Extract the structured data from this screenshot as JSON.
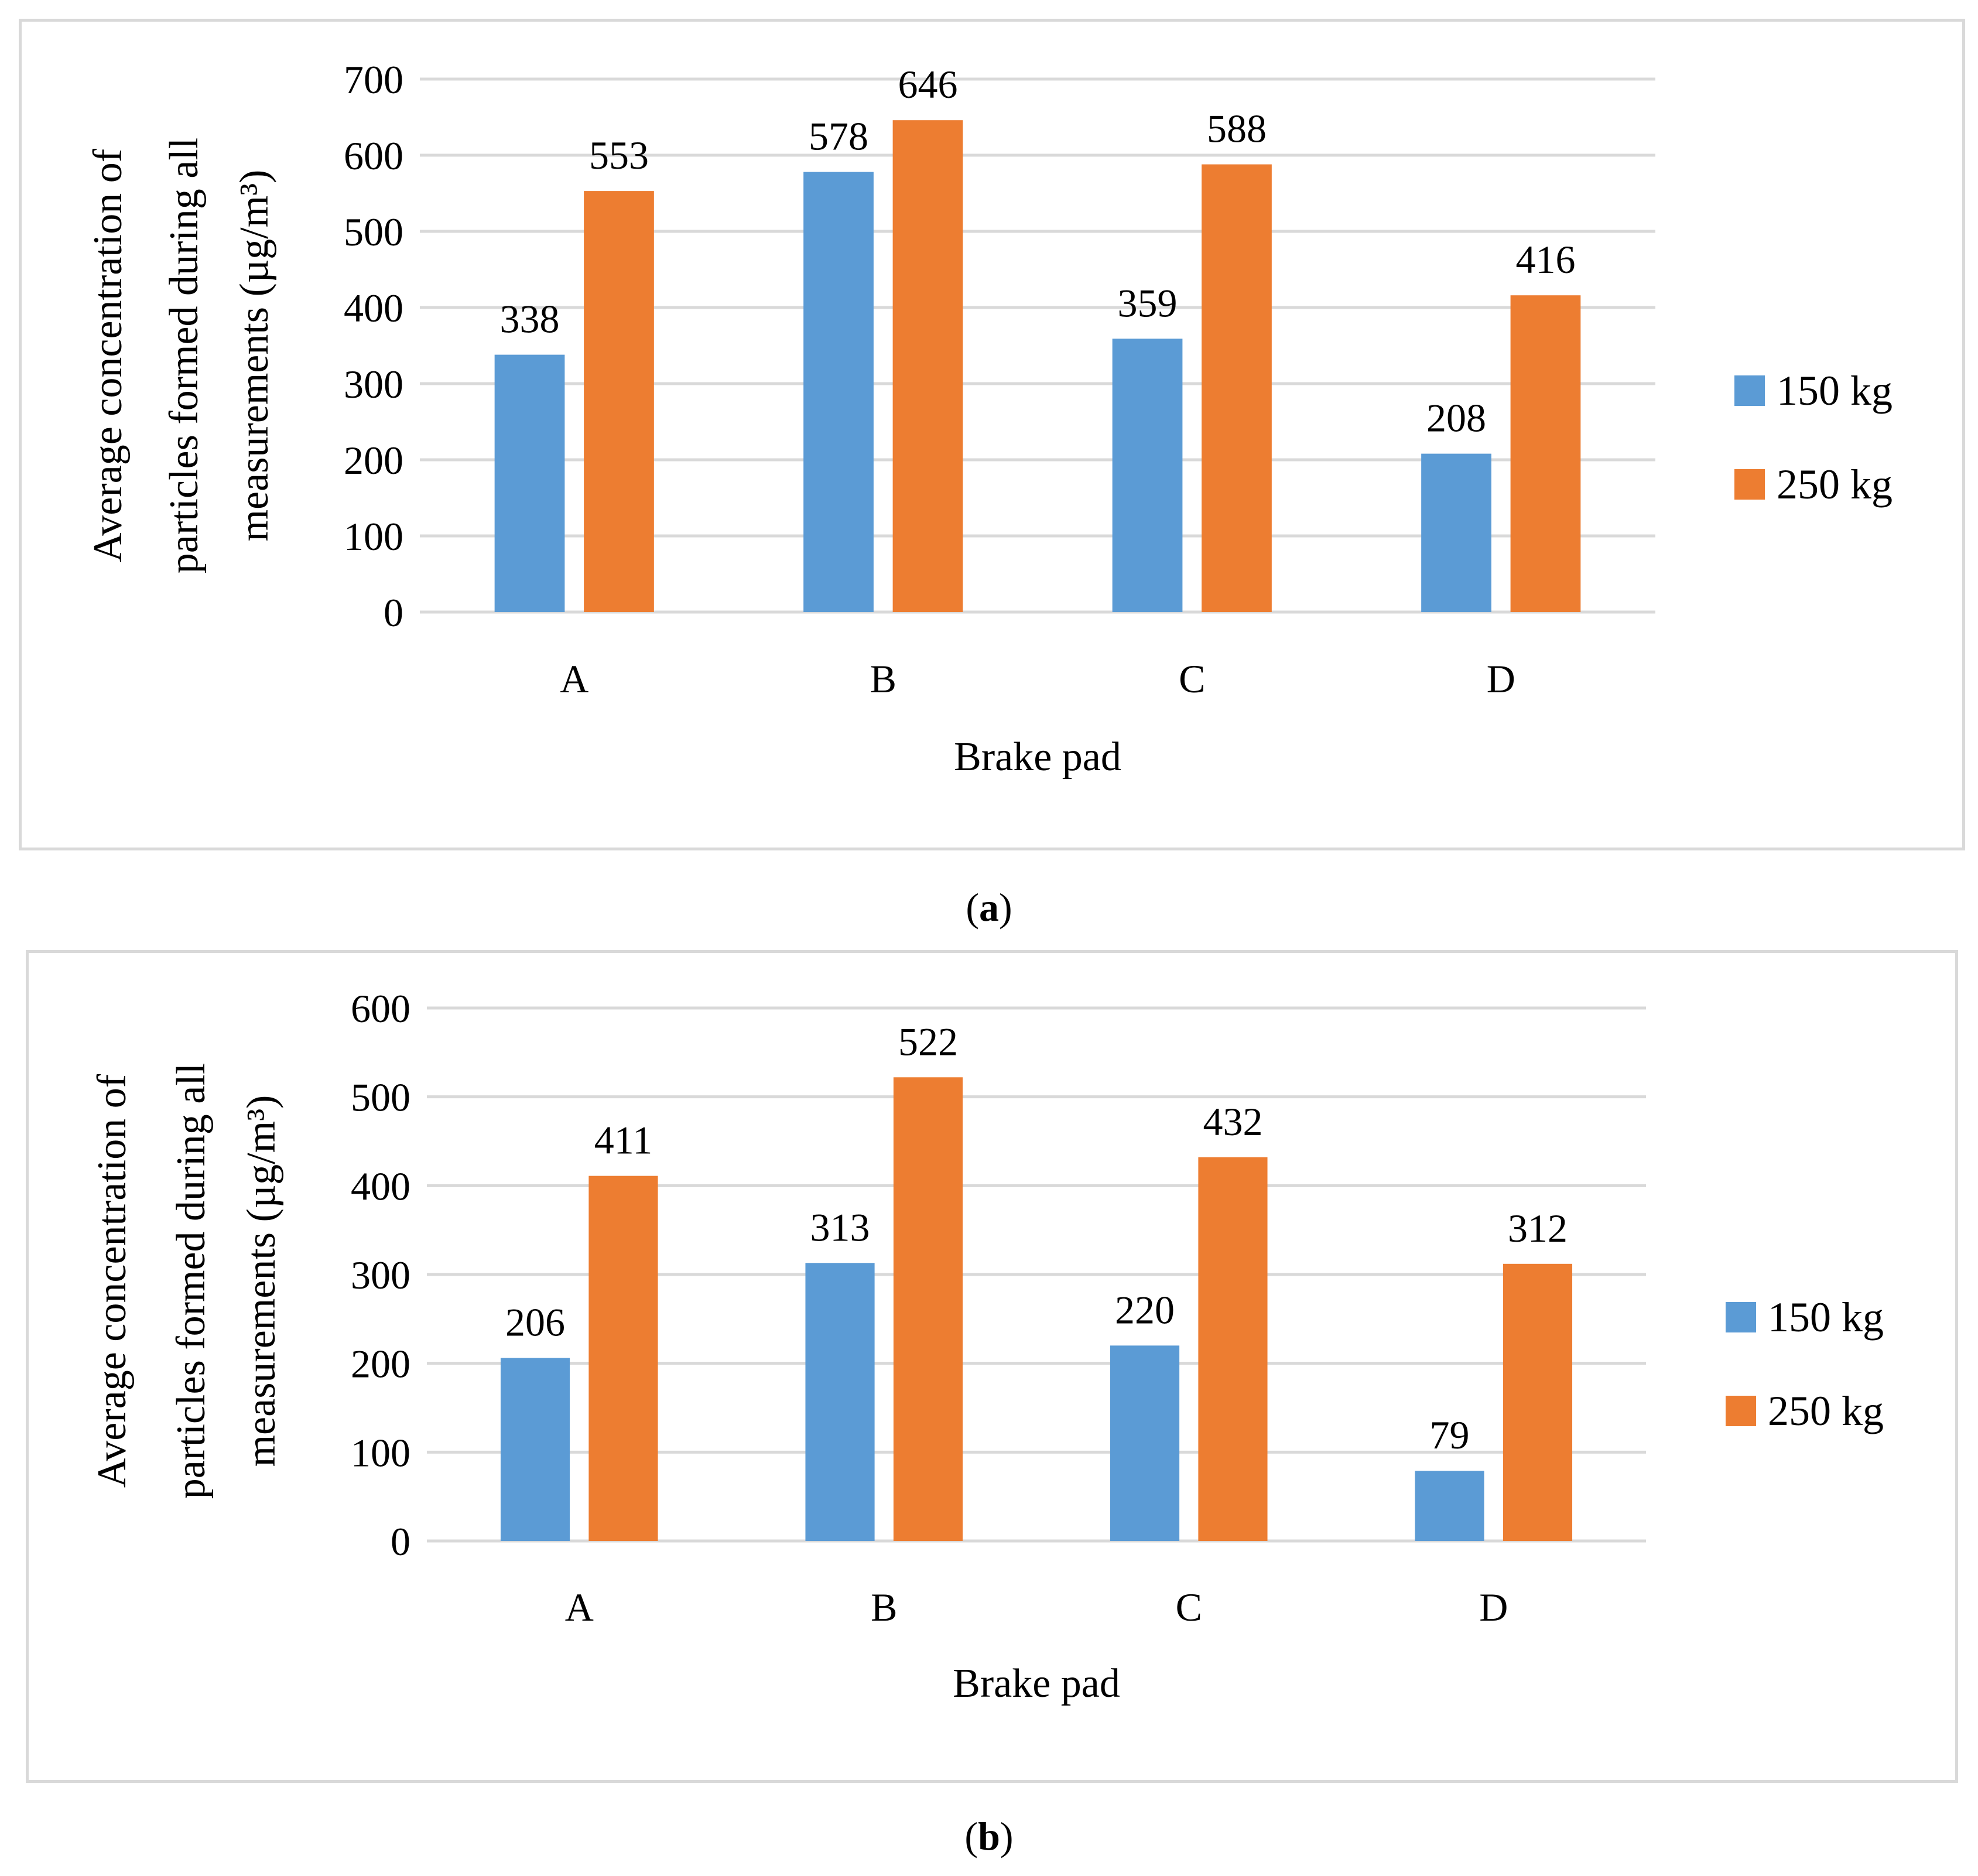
{
  "charts": [
    {
      "id": "a",
      "caption_letter": "a",
      "chart_data": {
        "type": "bar",
        "title": "",
        "categories": [
          "A",
          "B",
          "C",
          "D"
        ],
        "series": [
          {
            "name": "150 kg",
            "color": "#5B9BD5",
            "values": [
              338,
              578,
              359,
              208
            ]
          },
          {
            "name": "250 kg",
            "color": "#ED7D31",
            "values": [
              553,
              646,
              588,
              416
            ]
          }
        ],
        "xlabel": "Brake pad",
        "ylabel_lines": [
          "Average concentration of",
          "particles formed during all",
          "measurements (µg/m³)"
        ],
        "ylim": [
          0,
          700
        ],
        "yticks": [
          0,
          100,
          200,
          300,
          400,
          500,
          600,
          700
        ],
        "grid": true,
        "legend": "right"
      }
    },
    {
      "id": "b",
      "caption_letter": "b",
      "chart_data": {
        "type": "bar",
        "title": "",
        "categories": [
          "A",
          "B",
          "C",
          "D"
        ],
        "series": [
          {
            "name": "150 kg",
            "color": "#5B9BD5",
            "values": [
              206,
              313,
              220,
              79
            ]
          },
          {
            "name": "250 kg",
            "color": "#ED7D31",
            "values": [
              411,
              522,
              432,
              312
            ]
          }
        ],
        "xlabel": "Brake pad",
        "ylabel_lines": [
          "Average concentration of",
          "particles formed during all",
          "measurements (µg/m³)"
        ],
        "ylim": [
          0,
          600
        ],
        "yticks": [
          0,
          100,
          200,
          300,
          400,
          500,
          600
        ],
        "grid": true,
        "legend": "right"
      }
    }
  ]
}
